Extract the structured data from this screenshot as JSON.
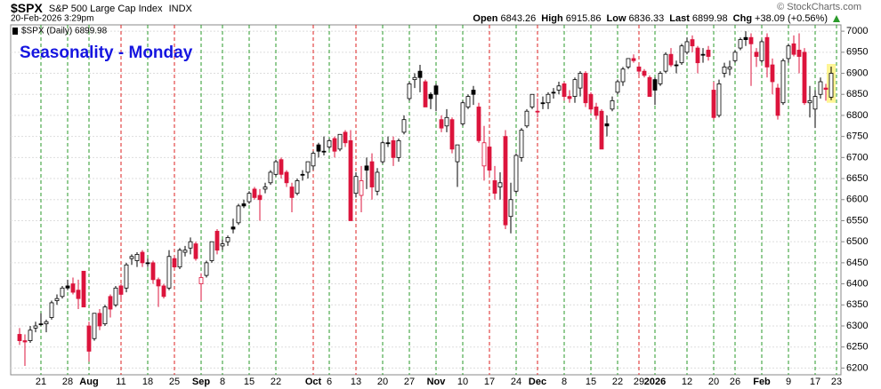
{
  "chart_data": {
    "type": "candlestick",
    "symbol": "$SPX",
    "name": "S&P 500 Large Cap Index",
    "exchange": "INDX",
    "timestamp": "20-Feb-2026 3:29pm",
    "quote": [
      {
        "label": "Open",
        "value": "6843.26"
      },
      {
        "label": "High",
        "value": "6915.86"
      },
      {
        "label": "Low",
        "value": "6836.33"
      },
      {
        "label": "Last",
        "value": "6899.98"
      },
      {
        "label": "Chg",
        "value": "+38.09 (+0.56%)"
      }
    ],
    "credit": "© StockCharts.com",
    "legend": "$SPX (Daily) 6899.98",
    "title": "Seasonality - Monday",
    "categories": [
      null,
      null,
      null,
      null,
      "21",
      null,
      null,
      null,
      null,
      "28",
      null,
      null,
      null,
      "Aug",
      null,
      null,
      null,
      null,
      null,
      "11",
      null,
      null,
      null,
      null,
      "18",
      null,
      null,
      null,
      null,
      "25",
      null,
      null,
      null,
      null,
      "Sep",
      null,
      null,
      null,
      "8",
      null,
      null,
      null,
      null,
      "15",
      null,
      null,
      null,
      null,
      "22",
      null,
      null,
      null,
      null,
      null,
      null,
      "Oct",
      null,
      null,
      "6",
      null,
      null,
      null,
      null,
      "13",
      null,
      null,
      null,
      null,
      "20",
      null,
      null,
      null,
      null,
      "27",
      null,
      null,
      null,
      null,
      "Nov",
      null,
      null,
      null,
      null,
      "10",
      null,
      null,
      null,
      null,
      "17",
      null,
      null,
      null,
      null,
      "24",
      null,
      null,
      null,
      "Dec",
      null,
      null,
      null,
      null,
      "8",
      null,
      null,
      null,
      null,
      "15",
      null,
      null,
      null,
      null,
      "22",
      null,
      null,
      null,
      "29",
      null,
      null,
      "2026",
      null,
      null,
      null,
      null,
      null,
      "12",
      null,
      null,
      null,
      null,
      "20",
      null,
      null,
      null,
      "26",
      null,
      null,
      null,
      null,
      "Feb",
      null,
      null,
      null,
      null,
      "9",
      null,
      null,
      null,
      null,
      "17",
      null,
      null,
      null,
      "23"
    ],
    "bold_categories": [
      "Aug",
      "Sep",
      "Oct",
      "Nov",
      "Dec",
      "2026",
      "Feb"
    ],
    "candles": [
      [
        6280,
        6295,
        6255,
        6265
      ],
      [
        6265,
        6280,
        6205,
        6262
      ],
      [
        6265,
        6300,
        6260,
        6290
      ],
      [
        6295,
        6310,
        6285,
        6300
      ],
      [
        6305,
        6330,
        6300,
        6305
      ],
      [
        6305,
        6315,
        6285,
        6310
      ],
      [
        6320,
        6360,
        6315,
        6355
      ],
      [
        6360,
        6375,
        6350,
        6365
      ],
      [
        6370,
        6395,
        6365,
        6390
      ],
      [
        6395,
        6410,
        6385,
        6390
      ],
      [
        6400,
        6415,
        6375,
        6380
      ],
      [
        6385,
        6410,
        6340,
        6365
      ],
      [
        6430,
        6430,
        6345,
        6345
      ],
      [
        6300,
        6310,
        6215,
        6240
      ],
      [
        6270,
        6330,
        6265,
        6330
      ],
      [
        6330,
        6340,
        6290,
        6300
      ],
      [
        6305,
        6350,
        6300,
        6345
      ],
      [
        6370,
        6375,
        6320,
        6340
      ],
      [
        6350,
        6395,
        6345,
        6390
      ],
      [
        6395,
        6400,
        6365,
        6375
      ],
      [
        6390,
        6450,
        6380,
        6445
      ],
      [
        6460,
        6470,
        6445,
        6465
      ],
      [
        6455,
        6475,
        6440,
        6470
      ],
      [
        6475,
        6480,
        6440,
        6450
      ],
      [
        6450,
        6460,
        6440,
        6450
      ],
      [
        6450,
        6455,
        6400,
        6410
      ],
      [
        6410,
        6415,
        6345,
        6395
      ],
      [
        6395,
        6400,
        6365,
        6370
      ],
      [
        6390,
        6480,
        6385,
        6465
      ],
      [
        6460,
        6465,
        6435,
        6440
      ],
      [
        6440,
        6485,
        6435,
        6480
      ],
      [
        6475,
        6490,
        6465,
        6480
      ],
      [
        6485,
        6510,
        6470,
        6500
      ],
      [
        6495,
        6500,
        6455,
        6460
      ],
      [
        6400,
        6425,
        6360,
        6415
      ],
      [
        6420,
        6455,
        6415,
        6450
      ],
      [
        6455,
        6500,
        6450,
        6500
      ],
      [
        6525,
        6530,
        6470,
        6480
      ],
      [
        6490,
        6505,
        6480,
        6495
      ],
      [
        6500,
        6515,
        6490,
        6510
      ],
      [
        6535,
        6555,
        6520,
        6530
      ],
      [
        6545,
        6590,
        6540,
        6585
      ],
      [
        6590,
        6600,
        6580,
        6585
      ],
      [
        6595,
        6620,
        6590,
        6615
      ],
      [
        6625,
        6630,
        6600,
        6605
      ],
      [
        6610,
        6625,
        6550,
        6600
      ],
      [
        6625,
        6640,
        6615,
        6630
      ],
      [
        6640,
        6670,
        6635,
        6665
      ],
      [
        6660,
        6695,
        6655,
        6690
      ],
      [
        6695,
        6700,
        6650,
        6660
      ],
      [
        6665,
        6670,
        6630,
        6640
      ],
      [
        6630,
        6640,
        6570,
        6605
      ],
      [
        6615,
        6650,
        6610,
        6645
      ],
      [
        6660,
        6670,
        6645,
        6660
      ],
      [
        6665,
        6690,
        6650,
        6690
      ],
      [
        6680,
        6715,
        6670,
        6710
      ],
      [
        6730,
        6735,
        6700,
        6715
      ],
      [
        6715,
        6750,
        6705,
        6715
      ],
      [
        6725,
        6745,
        6720,
        6740
      ],
      [
        6745,
        6750,
        6700,
        6715
      ],
      [
        6720,
        6755,
        6715,
        6755
      ],
      [
        6760,
        6765,
        6725,
        6735
      ],
      [
        6740,
        6765,
        6550,
        6550
      ],
      [
        6615,
        6665,
        6605,
        6655
      ],
      [
        6610,
        6680,
        6570,
        6645
      ],
      [
        6680,
        6700,
        6625,
        6670
      ],
      [
        6690,
        6710,
        6600,
        6630
      ],
      [
        6620,
        6675,
        6610,
        6665
      ],
      [
        6690,
        6740,
        6685,
        6735
      ],
      [
        6735,
        6750,
        6725,
        6735
      ],
      [
        6740,
        6750,
        6680,
        6700
      ],
      [
        6700,
        6745,
        6690,
        6740
      ],
      [
        6760,
        6800,
        6755,
        6790
      ],
      [
        6840,
        6880,
        6835,
        6875
      ],
      [
        6885,
        6900,
        6865,
        6890
      ],
      [
        6905,
        6920,
        6855,
        6890
      ],
      [
        6880,
        6885,
        6820,
        6820
      ],
      [
        6850,
        6855,
        6815,
        6840
      ],
      [
        6870,
        6875,
        6810,
        6850
      ],
      [
        6790,
        6800,
        6760,
        6770
      ],
      [
        6775,
        6815,
        6760,
        6795
      ],
      [
        6790,
        6795,
        6710,
        6720
      ],
      [
        6690,
        6730,
        6630,
        6730
      ],
      [
        6780,
        6835,
        6775,
        6830
      ],
      [
        6820,
        6850,
        6815,
        6845
      ],
      [
        6860,
        6870,
        6825,
        6850
      ],
      [
        6820,
        6830,
        6735,
        6740
      ],
      [
        6680,
        6775,
        6645,
        6735
      ],
      [
        6725,
        6745,
        6660,
        6670
      ],
      [
        6645,
        6680,
        6600,
        6615
      ],
      [
        6630,
        6665,
        6600,
        6640
      ],
      [
        6750,
        6765,
        6530,
        6540
      ],
      [
        6560,
        6640,
        6520,
        6600
      ],
      [
        6620,
        6710,
        6615,
        6705
      ],
      [
        6700,
        6770,
        6690,
        6765
      ],
      [
        6775,
        6815,
        6770,
        6810
      ],
      [
        6820,
        6850,
        6815,
        6850
      ],
      [
        6810,
        6840,
        6795,
        6810
      ],
      [
        6830,
        6845,
        6815,
        6830
      ],
      [
        6830,
        6855,
        6815,
        6850
      ],
      [
        6855,
        6865,
        6840,
        6855
      ],
      [
        6860,
        6880,
        6850,
        6870
      ],
      [
        6875,
        6880,
        6835,
        6845
      ],
      [
        6845,
        6860,
        6830,
        6840
      ],
      [
        6845,
        6890,
        6830,
        6885
      ],
      [
        6865,
        6905,
        6845,
        6900
      ],
      [
        6900,
        6905,
        6820,
        6830
      ],
      [
        6850,
        6855,
        6805,
        6815
      ],
      [
        6820,
        6830,
        6790,
        6800
      ],
      [
        6810,
        6815,
        6720,
        6720
      ],
      [
        6780,
        6800,
        6750,
        6775
      ],
      [
        6815,
        6845,
        6810,
        6835
      ],
      [
        6855,
        6885,
        6850,
        6880
      ],
      [
        6880,
        6915,
        6870,
        6910
      ],
      [
        6915,
        6935,
        6910,
        6935
      ],
      [
        6935,
        6945,
        6925,
        6930
      ],
      [
        6915,
        6920,
        6895,
        6905
      ],
      [
        6905,
        6910,
        6890,
        6895
      ],
      [
        6890,
        6895,
        6845,
        6845
      ],
      [
        6885,
        6890,
        6825,
        6860
      ],
      [
        6875,
        6905,
        6870,
        6900
      ],
      [
        6905,
        6950,
        6900,
        6945
      ],
      [
        6945,
        6960,
        6915,
        6920
      ],
      [
        6920,
        6930,
        6900,
        6920
      ],
      [
        6925,
        6970,
        6920,
        6965
      ],
      [
        6950,
        6985,
        6945,
        6975
      ],
      [
        6980,
        6990,
        6950,
        6965
      ],
      [
        6960,
        6965,
        6900,
        6925
      ],
      [
        6945,
        6960,
        6925,
        6945
      ],
      [
        6955,
        6965,
        6930,
        6940
      ],
      [
        6860,
        6880,
        6790,
        6795
      ],
      [
        6800,
        6885,
        6795,
        6875
      ],
      [
        6900,
        6925,
        6890,
        6915
      ],
      [
        6910,
        6930,
        6895,
        6915
      ],
      [
        6930,
        6955,
        6925,
        6950
      ],
      [
        6960,
        6985,
        6955,
        6980
      ],
      [
        6985,
        7000,
        6965,
        6980
      ],
      [
        6985,
        6995,
        6870,
        6970
      ],
      [
        6950,
        6960,
        6915,
        6940
      ],
      [
        6930,
        6980,
        6925,
        6975
      ],
      [
        6985,
        6995,
        6890,
        6915
      ],
      [
        6920,
        6935,
        6850,
        6880
      ],
      [
        6865,
        6875,
        6790,
        6800
      ],
      [
        6830,
        6935,
        6825,
        6930
      ],
      [
        6935,
        6970,
        6925,
        6965
      ],
      [
        6970,
        6990,
        6940,
        6945
      ],
      [
        6955,
        6995,
        6900,
        6940
      ],
      [
        6950,
        6960,
        6825,
        6830
      ],
      [
        6830,
        6870,
        6795,
        6835
      ],
      [
        6815,
        6860,
        6770,
        6845
      ],
      [
        6850,
        6890,
        6840,
        6880
      ],
      [
        6865,
        6875,
        6835,
        6861.89
      ],
      [
        6843.26,
        6915.86,
        6836.33,
        6899.98
      ],
      null
    ],
    "up_color": "#000000",
    "down_color": "#dc143c",
    "ylim": [
      6184,
      7015
    ],
    "yticks": [
      6200,
      6250,
      6300,
      6350,
      6400,
      6450,
      6500,
      6550,
      6600,
      6650,
      6700,
      6750,
      6800,
      6850,
      6900,
      6950,
      7000
    ],
    "grid": true
  }
}
